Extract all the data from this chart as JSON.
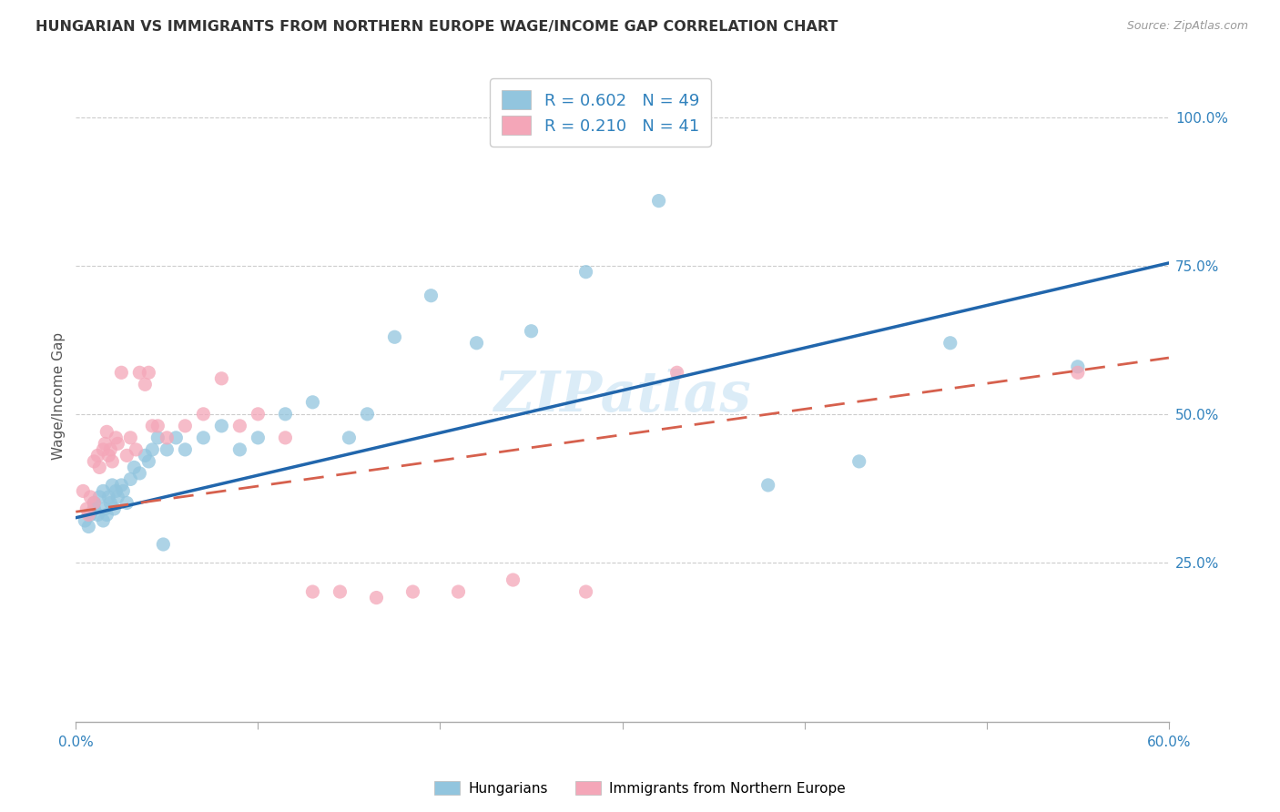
{
  "title": "HUNGARIAN VS IMMIGRANTS FROM NORTHERN EUROPE WAGE/INCOME GAP CORRELATION CHART",
  "source": "Source: ZipAtlas.com",
  "ylabel": "Wage/Income Gap",
  "yticks": [
    "25.0%",
    "50.0%",
    "75.0%",
    "100.0%"
  ],
  "ytick_vals": [
    0.25,
    0.5,
    0.75,
    1.0
  ],
  "xlim": [
    0.0,
    0.6
  ],
  "ylim": [
    -0.02,
    1.08
  ],
  "legend_label1": "Hungarians",
  "legend_label2": "Immigrants from Northern Europe",
  "R1": "0.602",
  "N1": "49",
  "R2": "0.210",
  "N2": "41",
  "color_blue": "#92c5de",
  "color_pink": "#f4a6b8",
  "color_blue_line": "#2166ac",
  "color_pink_line": "#d6604d",
  "color_text_blue": "#3182bd",
  "color_grid": "#cccccc",
  "watermark_color": "#cce4f5",
  "blue_scatter_x": [
    0.005,
    0.007,
    0.008,
    0.01,
    0.01,
    0.012,
    0.013,
    0.015,
    0.015,
    0.016,
    0.017,
    0.018,
    0.019,
    0.02,
    0.021,
    0.022,
    0.023,
    0.025,
    0.026,
    0.028,
    0.03,
    0.032,
    0.035,
    0.038,
    0.04,
    0.042,
    0.045,
    0.048,
    0.05,
    0.055,
    0.06,
    0.07,
    0.08,
    0.09,
    0.1,
    0.115,
    0.13,
    0.15,
    0.16,
    0.175,
    0.195,
    0.22,
    0.25,
    0.28,
    0.32,
    0.38,
    0.43,
    0.48,
    0.55
  ],
  "blue_scatter_y": [
    0.32,
    0.31,
    0.33,
    0.35,
    0.34,
    0.33,
    0.36,
    0.37,
    0.32,
    0.34,
    0.33,
    0.36,
    0.35,
    0.38,
    0.34,
    0.37,
    0.36,
    0.38,
    0.37,
    0.35,
    0.39,
    0.41,
    0.4,
    0.43,
    0.42,
    0.44,
    0.46,
    0.28,
    0.44,
    0.46,
    0.44,
    0.46,
    0.48,
    0.44,
    0.46,
    0.5,
    0.52,
    0.46,
    0.5,
    0.63,
    0.7,
    0.62,
    0.64,
    0.74,
    0.86,
    0.38,
    0.42,
    0.62,
    0.58
  ],
  "pink_scatter_x": [
    0.004,
    0.006,
    0.007,
    0.008,
    0.01,
    0.01,
    0.012,
    0.013,
    0.015,
    0.016,
    0.017,
    0.018,
    0.019,
    0.02,
    0.022,
    0.023,
    0.025,
    0.028,
    0.03,
    0.033,
    0.035,
    0.038,
    0.04,
    0.042,
    0.045,
    0.05,
    0.06,
    0.07,
    0.08,
    0.09,
    0.1,
    0.115,
    0.13,
    0.145,
    0.165,
    0.185,
    0.21,
    0.24,
    0.28,
    0.33,
    0.55
  ],
  "pink_scatter_y": [
    0.37,
    0.34,
    0.33,
    0.36,
    0.35,
    0.42,
    0.43,
    0.41,
    0.44,
    0.45,
    0.47,
    0.43,
    0.44,
    0.42,
    0.46,
    0.45,
    0.57,
    0.43,
    0.46,
    0.44,
    0.57,
    0.55,
    0.57,
    0.48,
    0.48,
    0.46,
    0.48,
    0.5,
    0.56,
    0.48,
    0.5,
    0.46,
    0.2,
    0.2,
    0.19,
    0.2,
    0.2,
    0.22,
    0.2,
    0.57,
    0.57
  ],
  "blue_line_x0": 0.0,
  "blue_line_y0": 0.325,
  "blue_line_x1": 0.6,
  "blue_line_y1": 0.755,
  "pink_line_x0": 0.0,
  "pink_line_y0": 0.335,
  "pink_line_x1": 0.6,
  "pink_line_y1": 0.595
}
